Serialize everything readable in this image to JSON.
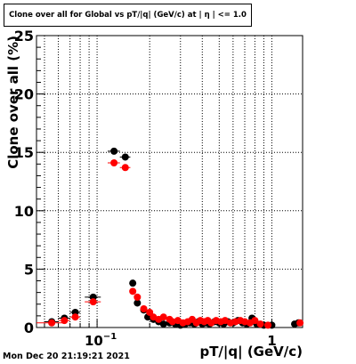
{
  "chart_data": {
    "type": "scatter",
    "title": "Clone  over all for Global vs pT/|q| (GeV/c) at | η | <= 1.0",
    "xlabel": "pT/|q| (GeV/c)",
    "ylabel": "Clone  over all (%)",
    "xscale": "log",
    "xlim": [
      0.045,
      1.5
    ],
    "ylim": [
      0,
      25
    ],
    "yticks": [
      0,
      5,
      10,
      15,
      20,
      25
    ],
    "xtick_labels": [
      {
        "value": 0.1,
        "base": "10",
        "exp": "−1"
      },
      {
        "value": 1,
        "base": "1",
        "exp": ""
      }
    ],
    "grid": true,
    "series": [
      {
        "color": "#000000",
        "points": [
          {
            "x": 0.055,
            "y": 0.5,
            "xerr": 0.005
          },
          {
            "x": 0.065,
            "y": 0.8,
            "xerr": 0.005
          },
          {
            "x": 0.075,
            "y": 1.3,
            "xerr": 0.005
          },
          {
            "x": 0.095,
            "y": 2.6,
            "xerr": 0.01
          },
          {
            "x": 0.125,
            "y": 15.1,
            "xerr": 0.01
          },
          {
            "x": 0.145,
            "y": 14.6,
            "xerr": 0.01
          },
          {
            "x": 0.16,
            "y": 3.8,
            "xerr": 0.005
          },
          {
            "x": 0.17,
            "y": 2.1,
            "xerr": 0.005
          },
          {
            "x": 0.185,
            "y": 1.5,
            "xerr": 0.005
          },
          {
            "x": 0.195,
            "y": 0.9,
            "xerr": 0.005
          },
          {
            "x": 0.21,
            "y": 0.7,
            "xerr": 0.005
          },
          {
            "x": 0.225,
            "y": 0.5,
            "xerr": 0.005
          },
          {
            "x": 0.24,
            "y": 0.3,
            "xerr": 0.005
          },
          {
            "x": 0.26,
            "y": 0.4,
            "xerr": 0.005
          },
          {
            "x": 0.28,
            "y": 0.3,
            "xerr": 0.005
          },
          {
            "x": 0.3,
            "y": 0.2,
            "xerr": 0.005
          },
          {
            "x": 0.32,
            "y": 0.3,
            "xerr": 0.005
          },
          {
            "x": 0.34,
            "y": 0.4,
            "xerr": 0.005
          },
          {
            "x": 0.36,
            "y": 0.3,
            "xerr": 0.005
          },
          {
            "x": 0.38,
            "y": 0.5,
            "xerr": 0.005
          },
          {
            "x": 0.4,
            "y": 0.3,
            "xerr": 0.005
          },
          {
            "x": 0.42,
            "y": 0.4,
            "xerr": 0.005
          },
          {
            "x": 0.44,
            "y": 0.3,
            "xerr": 0.005
          },
          {
            "x": 0.47,
            "y": 0.5,
            "xerr": 0.01
          },
          {
            "x": 0.5,
            "y": 0.4,
            "xerr": 0.01
          },
          {
            "x": 0.53,
            "y": 0.3,
            "xerr": 0.01
          },
          {
            "x": 0.56,
            "y": 0.5,
            "xerr": 0.01
          },
          {
            "x": 0.6,
            "y": 0.4,
            "xerr": 0.01
          },
          {
            "x": 0.64,
            "y": 0.6,
            "xerr": 0.01
          },
          {
            "x": 0.68,
            "y": 0.4,
            "xerr": 0.01
          },
          {
            "x": 0.72,
            "y": 0.3,
            "xerr": 0.01
          },
          {
            "x": 0.77,
            "y": 0.8,
            "xerr": 0.02
          },
          {
            "x": 0.82,
            "y": 0.3,
            "xerr": 0.02
          },
          {
            "x": 0.9,
            "y": 0.2,
            "xerr": 0.03
          },
          {
            "x": 1.0,
            "y": 0.2,
            "xerr": 0.03
          },
          {
            "x": 1.35,
            "y": 0.3,
            "xerr": 0.05
          },
          {
            "x": 1.42,
            "y": 0.4,
            "xerr": 0.05
          }
        ]
      },
      {
        "color": "#ff0000",
        "points": [
          {
            "x": 0.055,
            "y": 0.4,
            "xerr": 0.01
          },
          {
            "x": 0.065,
            "y": 0.6,
            "xerr": 0.005
          },
          {
            "x": 0.075,
            "y": 0.9,
            "xerr": 0.005
          },
          {
            "x": 0.095,
            "y": 2.2,
            "xerr": 0.01
          },
          {
            "x": 0.125,
            "y": 14.1,
            "xerr": 0.01
          },
          {
            "x": 0.145,
            "y": 13.7,
            "xerr": 0.01
          },
          {
            "x": 0.16,
            "y": 3.1,
            "xerr": 0.005
          },
          {
            "x": 0.17,
            "y": 2.6,
            "xerr": 0.005
          },
          {
            "x": 0.185,
            "y": 1.6,
            "xerr": 0.005
          },
          {
            "x": 0.2,
            "y": 1.3,
            "xerr": 0.005
          },
          {
            "x": 0.21,
            "y": 0.9,
            "xerr": 0.005
          },
          {
            "x": 0.225,
            "y": 0.7,
            "xerr": 0.005
          },
          {
            "x": 0.24,
            "y": 0.9,
            "xerr": 0.005
          },
          {
            "x": 0.26,
            "y": 0.7,
            "xerr": 0.005
          },
          {
            "x": 0.27,
            "y": 0.5,
            "xerr": 0.005
          },
          {
            "x": 0.29,
            "y": 0.6,
            "xerr": 0.005
          },
          {
            "x": 0.31,
            "y": 0.4,
            "xerr": 0.005
          },
          {
            "x": 0.33,
            "y": 0.5,
            "xerr": 0.005
          },
          {
            "x": 0.35,
            "y": 0.7,
            "xerr": 0.005
          },
          {
            "x": 0.37,
            "y": 0.4,
            "xerr": 0.005
          },
          {
            "x": 0.39,
            "y": 0.6,
            "xerr": 0.005
          },
          {
            "x": 0.41,
            "y": 0.5,
            "xerr": 0.005
          },
          {
            "x": 0.43,
            "y": 0.6,
            "xerr": 0.005
          },
          {
            "x": 0.45,
            "y": 0.4,
            "xerr": 0.005
          },
          {
            "x": 0.48,
            "y": 0.6,
            "xerr": 0.01
          },
          {
            "x": 0.51,
            "y": 0.5,
            "xerr": 0.01
          },
          {
            "x": 0.54,
            "y": 0.6,
            "xerr": 0.01
          },
          {
            "x": 0.58,
            "y": 0.4,
            "xerr": 0.01
          },
          {
            "x": 0.62,
            "y": 0.5,
            "xerr": 0.01
          },
          {
            "x": 0.66,
            "y": 0.6,
            "xerr": 0.01
          },
          {
            "x": 0.7,
            "y": 0.5,
            "xerr": 0.01
          },
          {
            "x": 0.75,
            "y": 0.4,
            "xerr": 0.01
          },
          {
            "x": 0.8,
            "y": 0.6,
            "xerr": 0.02
          },
          {
            "x": 0.86,
            "y": 0.3,
            "xerr": 0.02
          },
          {
            "x": 0.95,
            "y": 0.2,
            "xerr": 0.03
          },
          {
            "x": 1.45,
            "y": 0.4,
            "xerr": 0.05
          }
        ]
      }
    ]
  },
  "footer": {
    "timestamp": "Mon Dec 20 21:19:21 2021"
  }
}
